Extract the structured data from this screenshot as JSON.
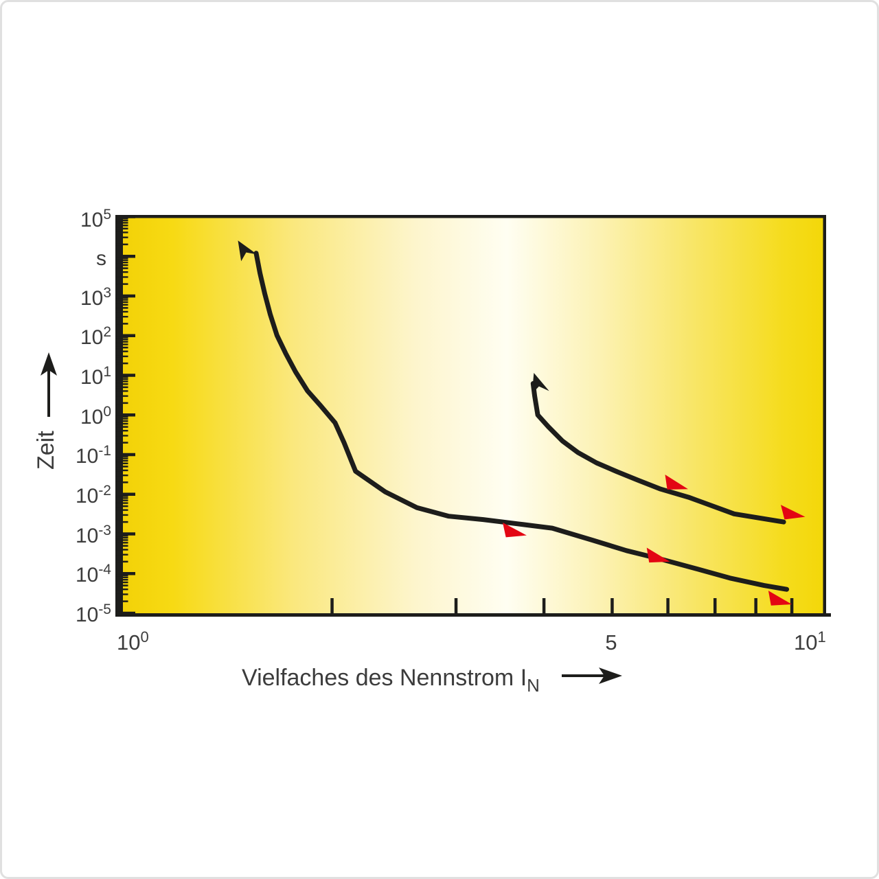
{
  "page": {
    "background_color": "#ffffff",
    "border_color": "#e0e0e0"
  },
  "yaxis": {
    "title": "Zeit",
    "labels": [
      {
        "base": "10",
        "exp": "5"
      },
      {
        "base": "s",
        "exp": ""
      },
      {
        "base": "10",
        "exp": "3"
      },
      {
        "base": "10",
        "exp": "2"
      },
      {
        "base": "10",
        "exp": "1"
      },
      {
        "base": "10",
        "exp": "0"
      },
      {
        "base": "10",
        "exp": "-1"
      },
      {
        "base": "10",
        "exp": "-2"
      },
      {
        "base": "10",
        "exp": "-3"
      },
      {
        "base": "10",
        "exp": "-4"
      },
      {
        "base": "10",
        "exp": "-5"
      }
    ]
  },
  "xaxis": {
    "title": "Vielfaches des Nennstrom I",
    "title_sub": "N",
    "labels": [
      {
        "base": "10",
        "exp": "0"
      },
      {
        "base": "5",
        "exp": ""
      },
      {
        "base": "10",
        "exp": "1"
      }
    ]
  },
  "chart_data": {
    "type": "line",
    "title": "",
    "xlabel": "Vielfaches des Nennstrom IN",
    "ylabel": "Zeit",
    "y_unit": "s",
    "x_scale": "log",
    "y_scale": "log",
    "xlim": [
      1,
      10
    ],
    "ylim": [
      1e-05,
      100000
    ],
    "grid": false,
    "legend": "none",
    "x_minor_ticks": [
      2,
      3,
      4,
      5,
      6,
      7,
      8,
      9
    ],
    "x_labeled_values": [
      1,
      5,
      10
    ],
    "y_major_tick_decades": [
      5,
      4,
      3,
      2,
      1,
      0,
      -1,
      -2,
      -3,
      -4,
      -5
    ],
    "series": [
      {
        "name": "curve-1-thermal-slow",
        "points": [
          [
            1.56,
            12000
          ],
          [
            1.58,
            3750
          ],
          [
            1.605,
            1130
          ],
          [
            1.634,
            340
          ],
          [
            1.67,
            102
          ],
          [
            1.72,
            34.6
          ],
          [
            1.775,
            12.2
          ],
          [
            1.845,
            4.1
          ],
          [
            1.93,
            1.65
          ],
          [
            2.02,
            0.63
          ],
          [
            2.08,
            0.2
          ],
          [
            2.16,
            0.038
          ],
          [
            2.38,
            0.0115
          ],
          [
            2.64,
            0.0046
          ],
          [
            2.93,
            0.0028
          ],
          [
            3.28,
            0.0023
          ],
          [
            3.67,
            0.0018
          ],
          [
            4.11,
            0.0014
          ],
          [
            4.68,
            0.0007
          ],
          [
            5.24,
            0.00038
          ],
          [
            5.87,
            0.00023
          ],
          [
            6.56,
            0.000135
          ],
          [
            7.35,
            7.7e-05
          ],
          [
            8.22,
            5e-05
          ],
          [
            8.85,
            4e-05
          ]
        ]
      },
      {
        "name": "curve-2-fast",
        "points": [
          [
            3.86,
            6.2
          ],
          [
            3.88,
            3.0
          ],
          [
            3.92,
            1.0
          ],
          [
            4.06,
            0.5
          ],
          [
            4.25,
            0.22
          ],
          [
            4.47,
            0.113
          ],
          [
            4.75,
            0.062
          ],
          [
            5.08,
            0.037
          ],
          [
            5.44,
            0.0227
          ],
          [
            5.86,
            0.0135
          ],
          [
            6.42,
            0.0084
          ],
          [
            7.45,
            0.0032
          ],
          [
            8.76,
            0.002
          ]
        ]
      }
    ],
    "start_arrows": [
      {
        "series": "curve-1-thermal-slow",
        "x": 1.47,
        "t": 25000,
        "angle": -32
      },
      {
        "series": "curve-2-fast",
        "x": 3.87,
        "t": 11.5,
        "angle": -18
      }
    ],
    "direction_markers": [
      {
        "series": "curve-1-thermal-slow",
        "x": 3.78,
        "t": 0.00092,
        "angle": 12
      },
      {
        "series": "curve-1-thermal-slow",
        "x": 6.04,
        "t": 0.0002,
        "angle": 15
      },
      {
        "series": "curve-1-thermal-slow",
        "x": 9.0,
        "t": 1.68e-05,
        "angle": 14
      },
      {
        "series": "curve-2-fast",
        "x": 6.41,
        "t": 0.0135,
        "angle": 16
      },
      {
        "series": "curve-2-fast",
        "x": 9.4,
        "t": 0.0027,
        "angle": 10
      }
    ],
    "colors": {
      "curve": "#1d1d1b",
      "marker_red": "#e30613",
      "axis": "#1d1d1b",
      "text": "#3c3c3c"
    },
    "background_gradient": [
      {
        "offset": "0%",
        "color": "#f2d106"
      },
      {
        "offset": "8%",
        "color": "#f7da14"
      },
      {
        "offset": "25%",
        "color": "#fae87e"
      },
      {
        "offset": "42%",
        "color": "#fdf5cc"
      },
      {
        "offset": "55%",
        "color": "#fffef2"
      },
      {
        "offset": "68%",
        "color": "#fcf2b4"
      },
      {
        "offset": "82%",
        "color": "#f8e563"
      },
      {
        "offset": "94%",
        "color": "#f5dc1d"
      },
      {
        "offset": "100%",
        "color": "#f3d708"
      }
    ]
  }
}
